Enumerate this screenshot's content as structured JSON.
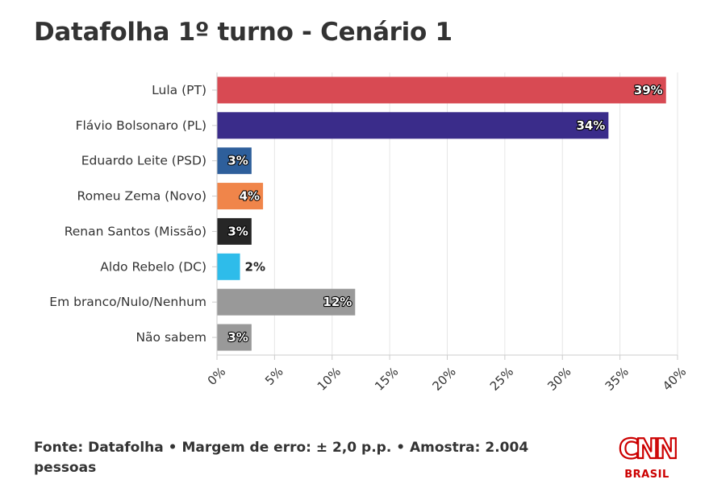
{
  "chart_data": {
    "type": "bar",
    "orientation": "horizontal",
    "title": "Datafolha 1º turno - Cenário 1",
    "categories": [
      "Lula (PT)",
      "Flávio Bolsonaro (PL)",
      "Eduardo Leite (PSD)",
      "Romeu Zema (Novo)",
      "Renan Santos (Missão)",
      "Aldo Rebelo (DC)",
      "Em branco/Nulo/Nenhum",
      "Não sabem"
    ],
    "values": [
      39,
      34,
      3,
      4,
      3,
      2,
      12,
      3
    ],
    "value_labels": [
      "39%",
      "34%",
      "3%",
      "4%",
      "3%",
      "2%",
      "12%",
      "3%"
    ],
    "colors": [
      "#d84a53",
      "#3a2c8a",
      "#2e5f9b",
      "#f0854a",
      "#262626",
      "#2ebcea",
      "#999999",
      "#999999"
    ],
    "xlim": [
      0,
      40
    ],
    "x_ticks": [
      0,
      5,
      10,
      15,
      20,
      25,
      30,
      35,
      40
    ],
    "x_tick_labels": [
      "0%",
      "5%",
      "10%",
      "15%",
      "20%",
      "25%",
      "30%",
      "35%",
      "40%"
    ],
    "grid": true,
    "xlabel": "",
    "ylabel": ""
  },
  "footer": {
    "source": "Fonte: Datafolha • Margem de erro: ± 2,0 p.p. • Amostra: 2.004 pessoas"
  },
  "logo": {
    "brand": "CNN",
    "sub": "BRASIL",
    "color": "#cc0000"
  }
}
